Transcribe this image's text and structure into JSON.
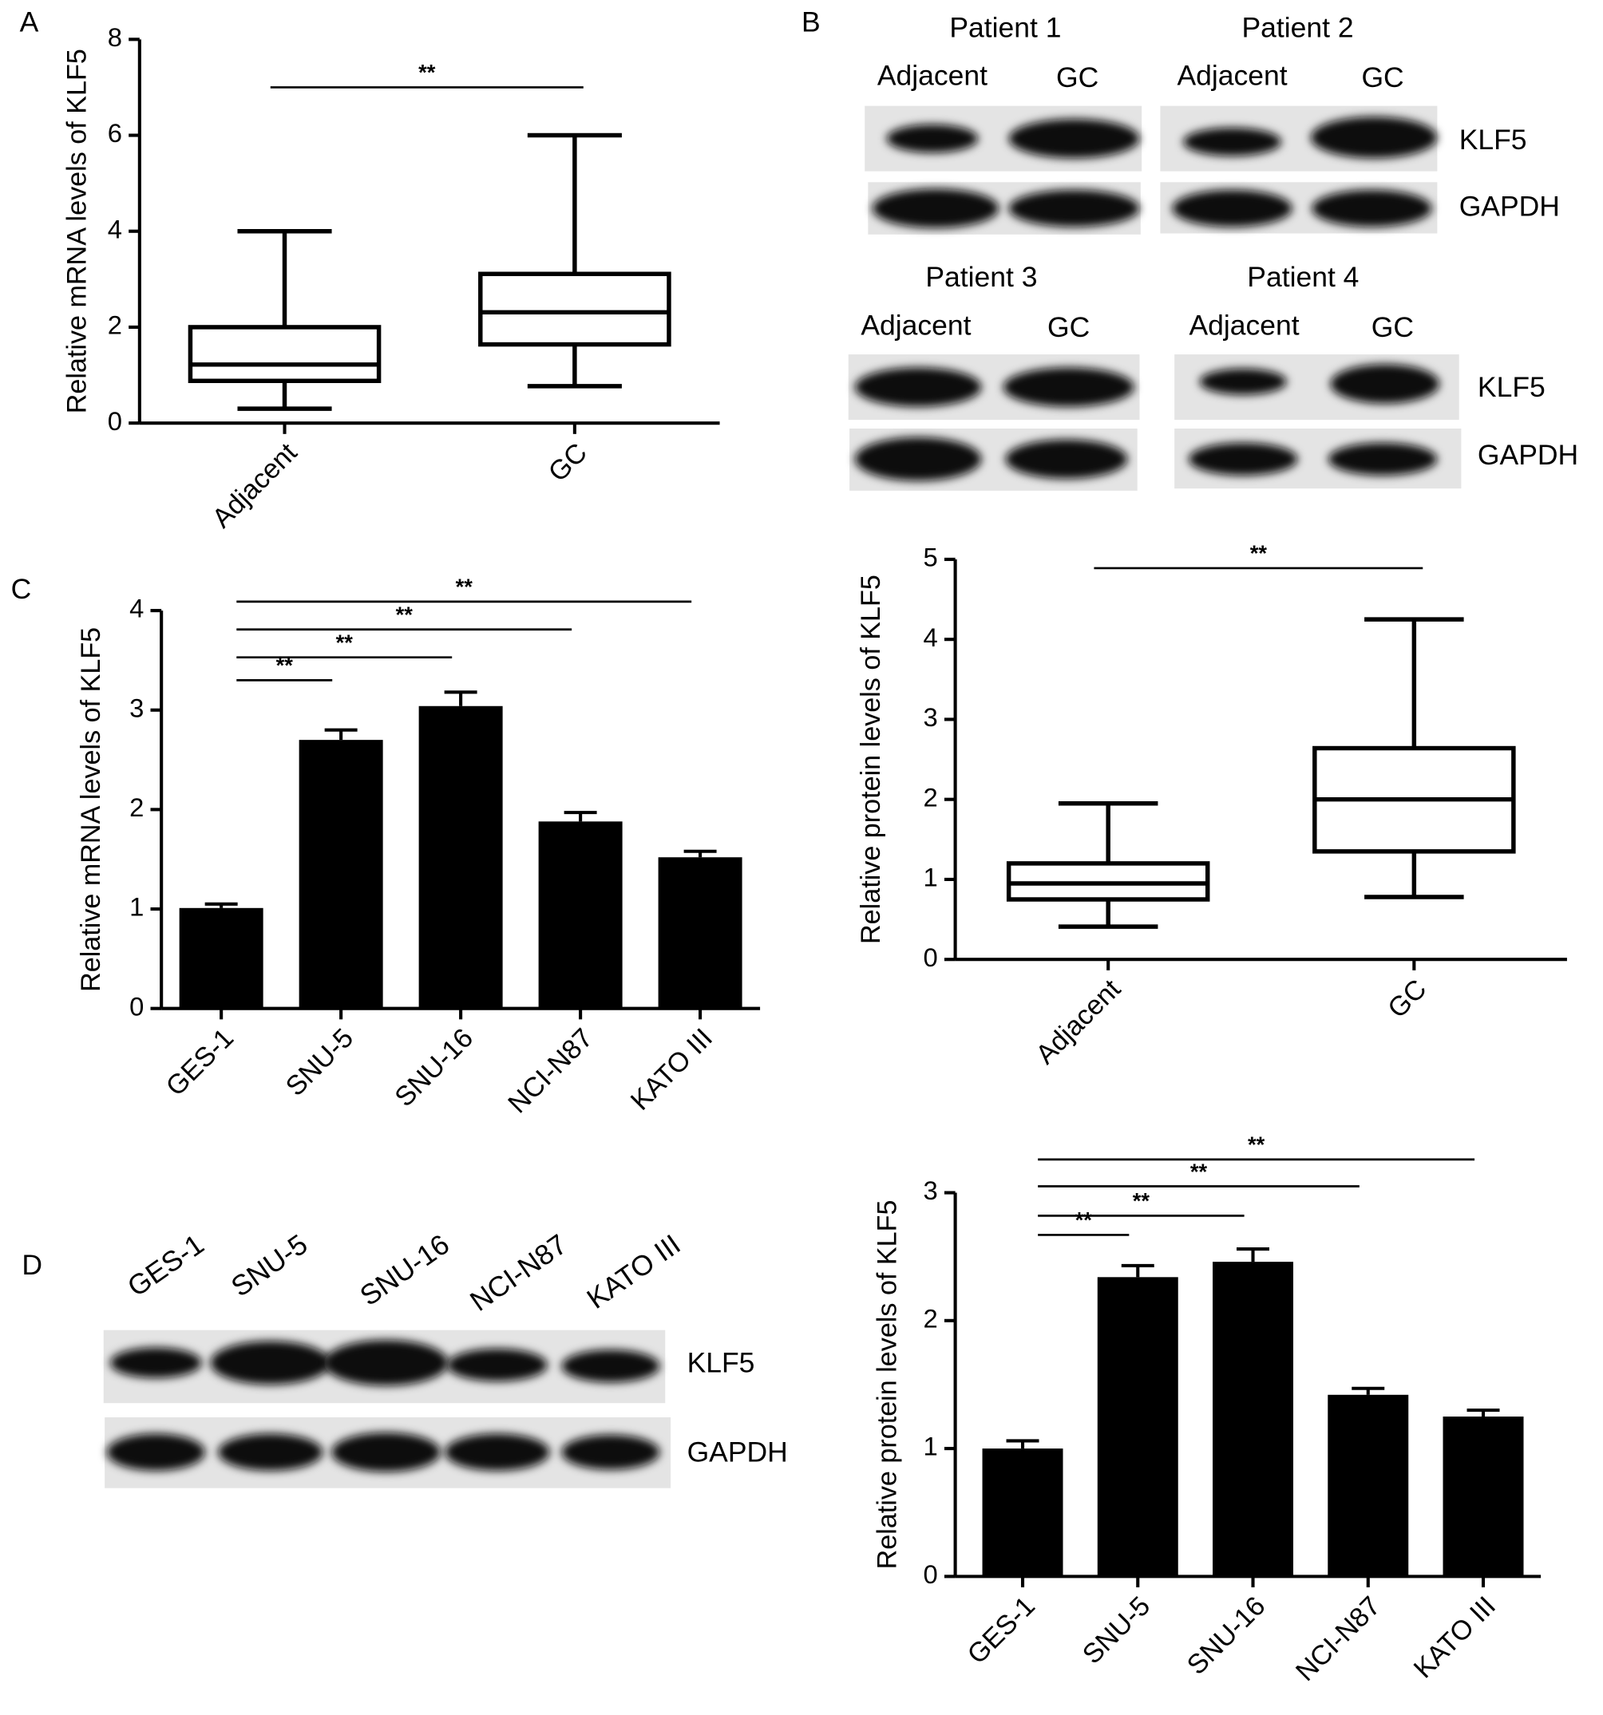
{
  "panel_labels": [
    "A",
    "B",
    "C",
    "D"
  ],
  "patient_blots": {
    "patients": [
      {
        "title": "Patient 1",
        "lanes": [
          "Adjacent",
          "GC"
        ]
      },
      {
        "title": "Patient 2",
        "lanes": [
          "Adjacent",
          "GC"
        ]
      },
      {
        "title": "Patient 3",
        "lanes": [
          "Adjacent",
          "GC"
        ]
      },
      {
        "title": "Patient 4",
        "lanes": [
          "Adjacent",
          "GC"
        ]
      }
    ],
    "row_labels_top": [
      "KLF5",
      "GAPDH"
    ],
    "row_labels_bottom": [
      "KLF5",
      "GAPDH"
    ]
  },
  "cell_blot": {
    "lanes": [
      "GES-1",
      "SNU-5",
      "SNU-16",
      "NCI-N87",
      "KATO III"
    ],
    "row_labels": [
      "KLF5",
      "GAPDH"
    ]
  },
  "chart_data": [
    {
      "type": "box",
      "y_label": "Relative mRNA levels of KLF5",
      "categories": [
        "Adjacent",
        "GC"
      ],
      "whisker_low": [
        0.3,
        0.77
      ],
      "q1": [
        0.88,
        1.64
      ],
      "median": [
        1.22,
        2.31
      ],
      "q3": [
        2.0,
        3.11
      ],
      "whisker_high": [
        4.0,
        6.0
      ],
      "ylim": [
        0,
        8
      ],
      "yticks": [
        0,
        2,
        4,
        6,
        8
      ],
      "annotations": [
        {
          "text": "**",
          "between": [
            "Adjacent",
            "GC"
          ],
          "y": 7.0
        }
      ]
    },
    {
      "type": "box",
      "y_label": "Relative protein levels of KLF5",
      "categories": [
        "Adjacent",
        "GC"
      ],
      "whisker_low": [
        0.41,
        0.78
      ],
      "q1": [
        0.75,
        1.35
      ],
      "median": [
        0.95,
        2.0
      ],
      "q3": [
        1.2,
        2.64
      ],
      "whisker_high": [
        1.95,
        4.25
      ],
      "ylim": [
        0,
        5
      ],
      "yticks": [
        0,
        1,
        2,
        3,
        4,
        5
      ],
      "annotations": [
        {
          "text": "**",
          "between": [
            "Adjacent",
            "GC"
          ],
          "y": 4.89
        }
      ]
    },
    {
      "type": "bar",
      "y_label": "Relative mRNA levels of KLF5",
      "color": "#000000",
      "categories": [
        "GES-1",
        "SNU-5",
        "SNU-16",
        "NCI-N87",
        "KATO III"
      ],
      "values": [
        1.01,
        2.7,
        3.04,
        1.88,
        1.52
      ],
      "errors": [
        0.04,
        0.1,
        0.14,
        0.09,
        0.06
      ],
      "ylim": [
        0,
        4
      ],
      "yticks": [
        0,
        1,
        2,
        3,
        4
      ],
      "annotations": [
        {
          "text": "**",
          "between": [
            "GES-1",
            "SNU-5"
          ],
          "y": 3.3
        },
        {
          "text": "**",
          "between": [
            "GES-1",
            "SNU-16"
          ],
          "y": 3.53
        },
        {
          "text": "**",
          "between": [
            "GES-1",
            "NCI-N87"
          ],
          "y": 3.81
        },
        {
          "text": "**",
          "between": [
            "GES-1",
            "KATO III"
          ],
          "y": 4.09
        }
      ]
    },
    {
      "type": "bar",
      "y_label": "Relative protein levels of KLF5",
      "color": "#000000",
      "categories": [
        "GES-1",
        "SNU-5",
        "SNU-16",
        "NCI-N87",
        "KATO III"
      ],
      "values": [
        1.0,
        2.34,
        2.46,
        1.42,
        1.25
      ],
      "errors": [
        0.06,
        0.09,
        0.1,
        0.05,
        0.05
      ],
      "ylim": [
        0,
        3
      ],
      "yticks": [
        0,
        1,
        2,
        3
      ],
      "annotations": [
        {
          "text": "**",
          "between": [
            "GES-1",
            "SNU-5"
          ],
          "y": 2.67
        },
        {
          "text": "**",
          "between": [
            "GES-1",
            "SNU-16"
          ],
          "y": 2.82
        },
        {
          "text": "**",
          "between": [
            "GES-1",
            "NCI-N87"
          ],
          "y": 3.05
        },
        {
          "text": "**",
          "between": [
            "GES-1",
            "KATO III"
          ],
          "y": 3.26
        }
      ]
    }
  ]
}
